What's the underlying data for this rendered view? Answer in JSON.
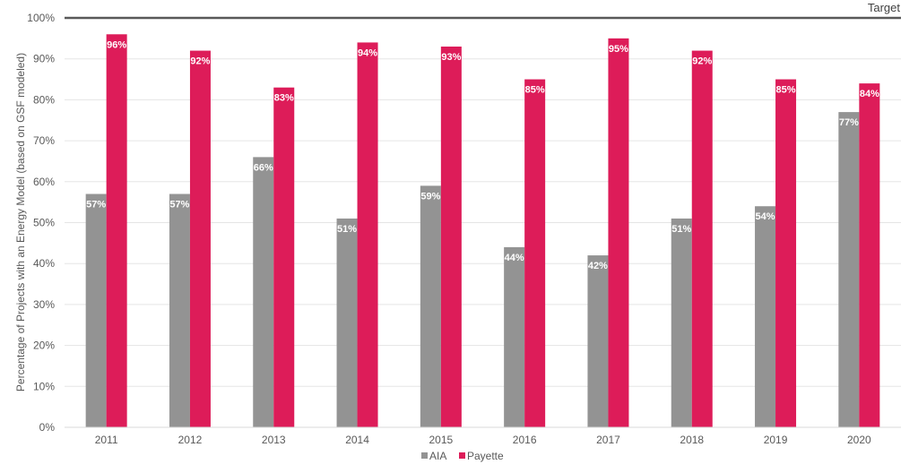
{
  "chart_data": {
    "type": "bar",
    "categories": [
      "2011",
      "2012",
      "2013",
      "2014",
      "2015",
      "2016",
      "2017",
      "2018",
      "2019",
      "2020"
    ],
    "series": [
      {
        "name": "AIA",
        "color": "#939393",
        "values": [
          57,
          57,
          66,
          51,
          59,
          44,
          42,
          51,
          54,
          77
        ]
      },
      {
        "name": "Payette",
        "color": "#DD1C59",
        "values": [
          96,
          92,
          83,
          94,
          93,
          85,
          95,
          92,
          85,
          84
        ]
      }
    ],
    "data_labels": {
      "AIA": [
        "57%",
        "57%",
        "66%",
        "51%",
        "59%",
        "44%",
        "42%",
        "51%",
        "54%",
        "77%"
      ],
      "Payette": [
        "96%",
        "92%",
        "83%",
        "94%",
        "93%",
        "85%",
        "95%",
        "92%",
        "85%",
        "84%"
      ]
    },
    "ylabel": "Percentage of Projects with an Energy Model (based on GSF modeled)",
    "ylim": [
      0,
      100
    ],
    "yticks": [
      "0%",
      "10%",
      "20%",
      "30%",
      "40%",
      "50%",
      "60%",
      "70%",
      "80%",
      "90%",
      "100%"
    ],
    "target": {
      "label": "Target",
      "value": 100,
      "color": "#595959"
    },
    "grid": true,
    "legend": "bottom-center"
  }
}
